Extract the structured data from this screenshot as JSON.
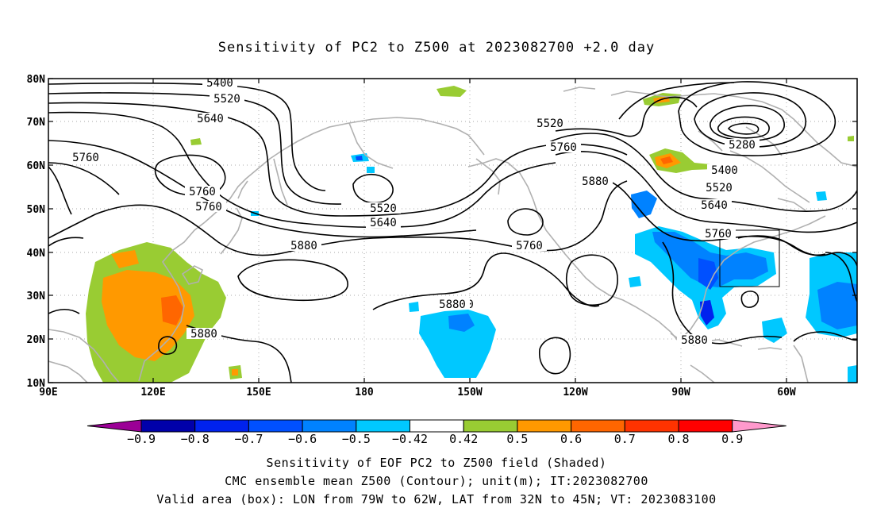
{
  "title": "Sensitivity of PC2 to Z500 at 2023082700 +2.0 day",
  "axes": {
    "lat_labels": [
      "80N",
      "70N",
      "60N",
      "50N",
      "40N",
      "30N",
      "20N",
      "10N"
    ],
    "lon_labels": [
      "90E",
      "120E",
      "150E",
      "180",
      "150W",
      "120W",
      "90W",
      "60W"
    ]
  },
  "contour_labels": [
    "5400",
    "5520",
    "5640",
    "5760",
    "5760",
    "5760",
    "5880",
    "5520",
    "5640",
    "5760",
    "5880",
    "5880",
    "5520",
    "5760",
    "5880",
    "5280",
    "5400",
    "5520",
    "5640",
    "5760",
    "5880",
    "5880"
  ],
  "colorbar": {
    "labels": [
      "-0.9",
      "-0.8",
      "-0.7",
      "-0.6",
      "-0.5",
      "-0.42",
      "0.42",
      "0.5",
      "0.6",
      "0.7",
      "0.8",
      "0.9"
    ],
    "colors": [
      "#9b0096",
      "#0000aa",
      "#0022ee",
      "#0050ff",
      "#0082ff",
      "#00c8ff",
      "#ffffff",
      "#99cc33",
      "#ff9900",
      "#ff6600",
      "#ff3300",
      "#ff0000",
      "#ff99cc"
    ]
  },
  "valid_box": {
    "lon_from": "79W",
    "lon_to": "62W",
    "lat_from": "32N",
    "lat_to": "45N"
  },
  "footer": {
    "line1": "Sensitivity of EOF PC2 to Z500 field (Shaded)",
    "line2": "CMC ensemble mean Z500 (Contour); unit(m); IT:2023082700",
    "line3": "Valid area (box): LON from 79W to 62W, LAT from 32N to 45N; VT: 2023083100"
  }
}
